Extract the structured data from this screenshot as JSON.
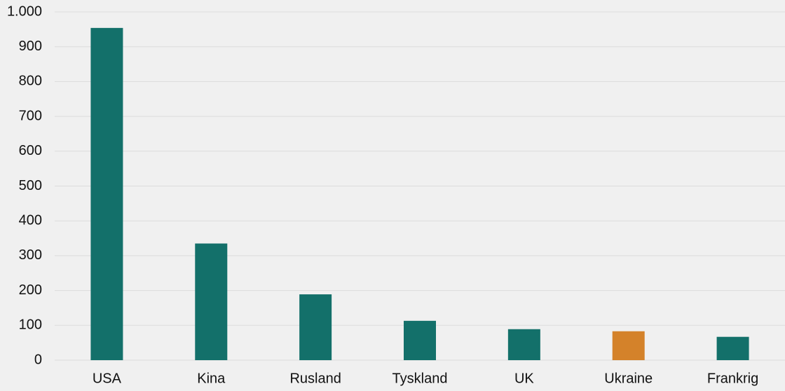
{
  "chart_data": {
    "type": "bar",
    "categories": [
      "USA",
      "Kina",
      "Rusland",
      "Tyskland",
      "UK",
      "Ukraine",
      "Frankrig"
    ],
    "values": [
      954,
      335,
      189,
      113,
      89,
      83,
      67
    ],
    "colors": [
      "#13706a",
      "#13706a",
      "#13706a",
      "#13706a",
      "#13706a",
      "#d4822a",
      "#13706a"
    ],
    "ylim": [
      0,
      1000
    ],
    "yticks": [
      0,
      100,
      200,
      300,
      400,
      500,
      600,
      700,
      800,
      900,
      {
        "value": 1000,
        "label": "1.000"
      }
    ],
    "grid": true
  }
}
